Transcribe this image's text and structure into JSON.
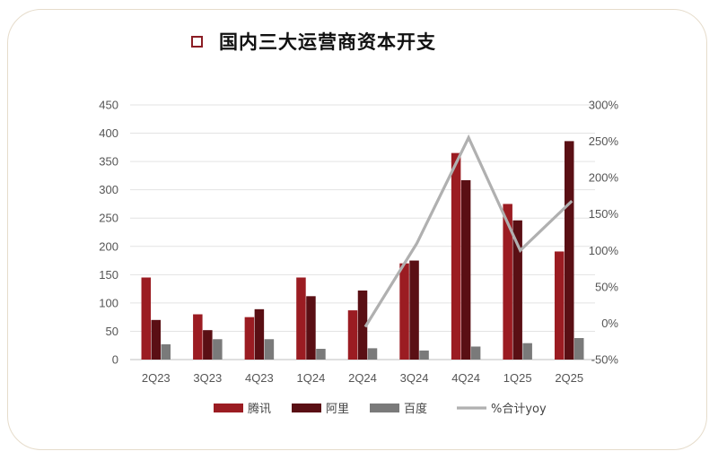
{
  "chart_data": {
    "type": "bar",
    "title": "国内三大运营商资本开支",
    "categories": [
      "2Q23",
      "3Q23",
      "4Q23",
      "1Q24",
      "2Q24",
      "3Q24",
      "4Q24",
      "1Q25",
      "2Q25"
    ],
    "series": [
      {
        "name": "腾讯",
        "color": "#9b1c22",
        "values": [
          145,
          80,
          75,
          145,
          87,
          170,
          365,
          275,
          191
        ]
      },
      {
        "name": "阿里",
        "color": "#5a0f14",
        "values": [
          70,
          52,
          89,
          112,
          122,
          175,
          317,
          246,
          386
        ]
      },
      {
        "name": "百度",
        "color": "#7a7a7a",
        "values": [
          27,
          36,
          36,
          19,
          20,
          16,
          23,
          29,
          38
        ]
      }
    ],
    "line_series": {
      "name": "%合计yoy",
      "color": "#b0b0b0",
      "axis": "right",
      "x": [
        "2Q24",
        "3Q24",
        "4Q24",
        "1Q25",
        "2Q25"
      ],
      "values": [
        -5,
        110,
        255,
        100,
        168
      ]
    },
    "y_left": {
      "min": 0,
      "max": 450,
      "ticks": [
        "0",
        "50",
        "100",
        "150",
        "200",
        "250",
        "300",
        "350",
        "400",
        "450"
      ]
    },
    "y_right": {
      "min": -50,
      "max": 300,
      "ticks": [
        "-50%",
        "0%",
        "50%",
        "100%",
        "150%",
        "200%",
        "250%",
        "300%"
      ]
    },
    "grid": true,
    "legend_position": "bottom"
  }
}
